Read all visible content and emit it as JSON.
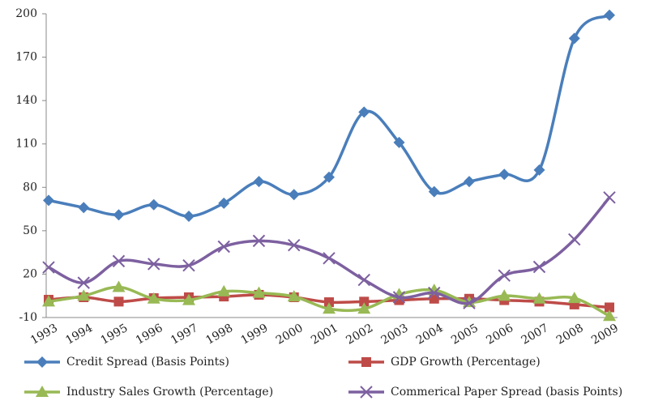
{
  "chart_data": {
    "type": "line",
    "categories": [
      "1993",
      "1994",
      "1995",
      "1996",
      "1997",
      "1998",
      "1999",
      "2000",
      "2001",
      "2002",
      "2003",
      "2004",
      "2005",
      "2006",
      "2007",
      "2008",
      "2009"
    ],
    "ylim": [
      -10,
      200
    ],
    "yticks": [
      -10,
      20,
      50,
      80,
      110,
      140,
      170,
      200
    ],
    "grid": false,
    "legend": "bottom",
    "series": [
      {
        "name": "Credit Spread (Basis Points)",
        "color": "#4a7ebb",
        "marker": "diamond",
        "values": [
          71,
          66,
          61,
          68,
          60,
          69,
          84,
          75,
          87,
          132,
          111,
          77,
          84,
          89,
          92,
          183,
          199
        ]
      },
      {
        "name": "GDP Growth (Percentage)",
        "color": "#be4b48",
        "marker": "square",
        "values": [
          2.3,
          4,
          1,
          3.4,
          4,
          4.5,
          5.7,
          4,
          0.6,
          1,
          2,
          3,
          3,
          2,
          1,
          -1,
          -3
        ]
      },
      {
        "name": "Industry Sales Growth (Percentage)",
        "color": "#98b954",
        "marker": "triangle",
        "values": [
          1,
          5,
          11,
          3,
          2,
          8,
          7,
          4.5,
          -4,
          -4,
          6,
          9,
          0.6,
          5,
          3,
          3.4,
          -9
        ]
      },
      {
        "name": "Commerical Paper Spread (basis Points)",
        "color": "#7d60a0",
        "marker": "x",
        "values": [
          24.7,
          14,
          29,
          27,
          26,
          39,
          43,
          40,
          31,
          16,
          4,
          7,
          0,
          19,
          25,
          44,
          73
        ]
      }
    ]
  }
}
